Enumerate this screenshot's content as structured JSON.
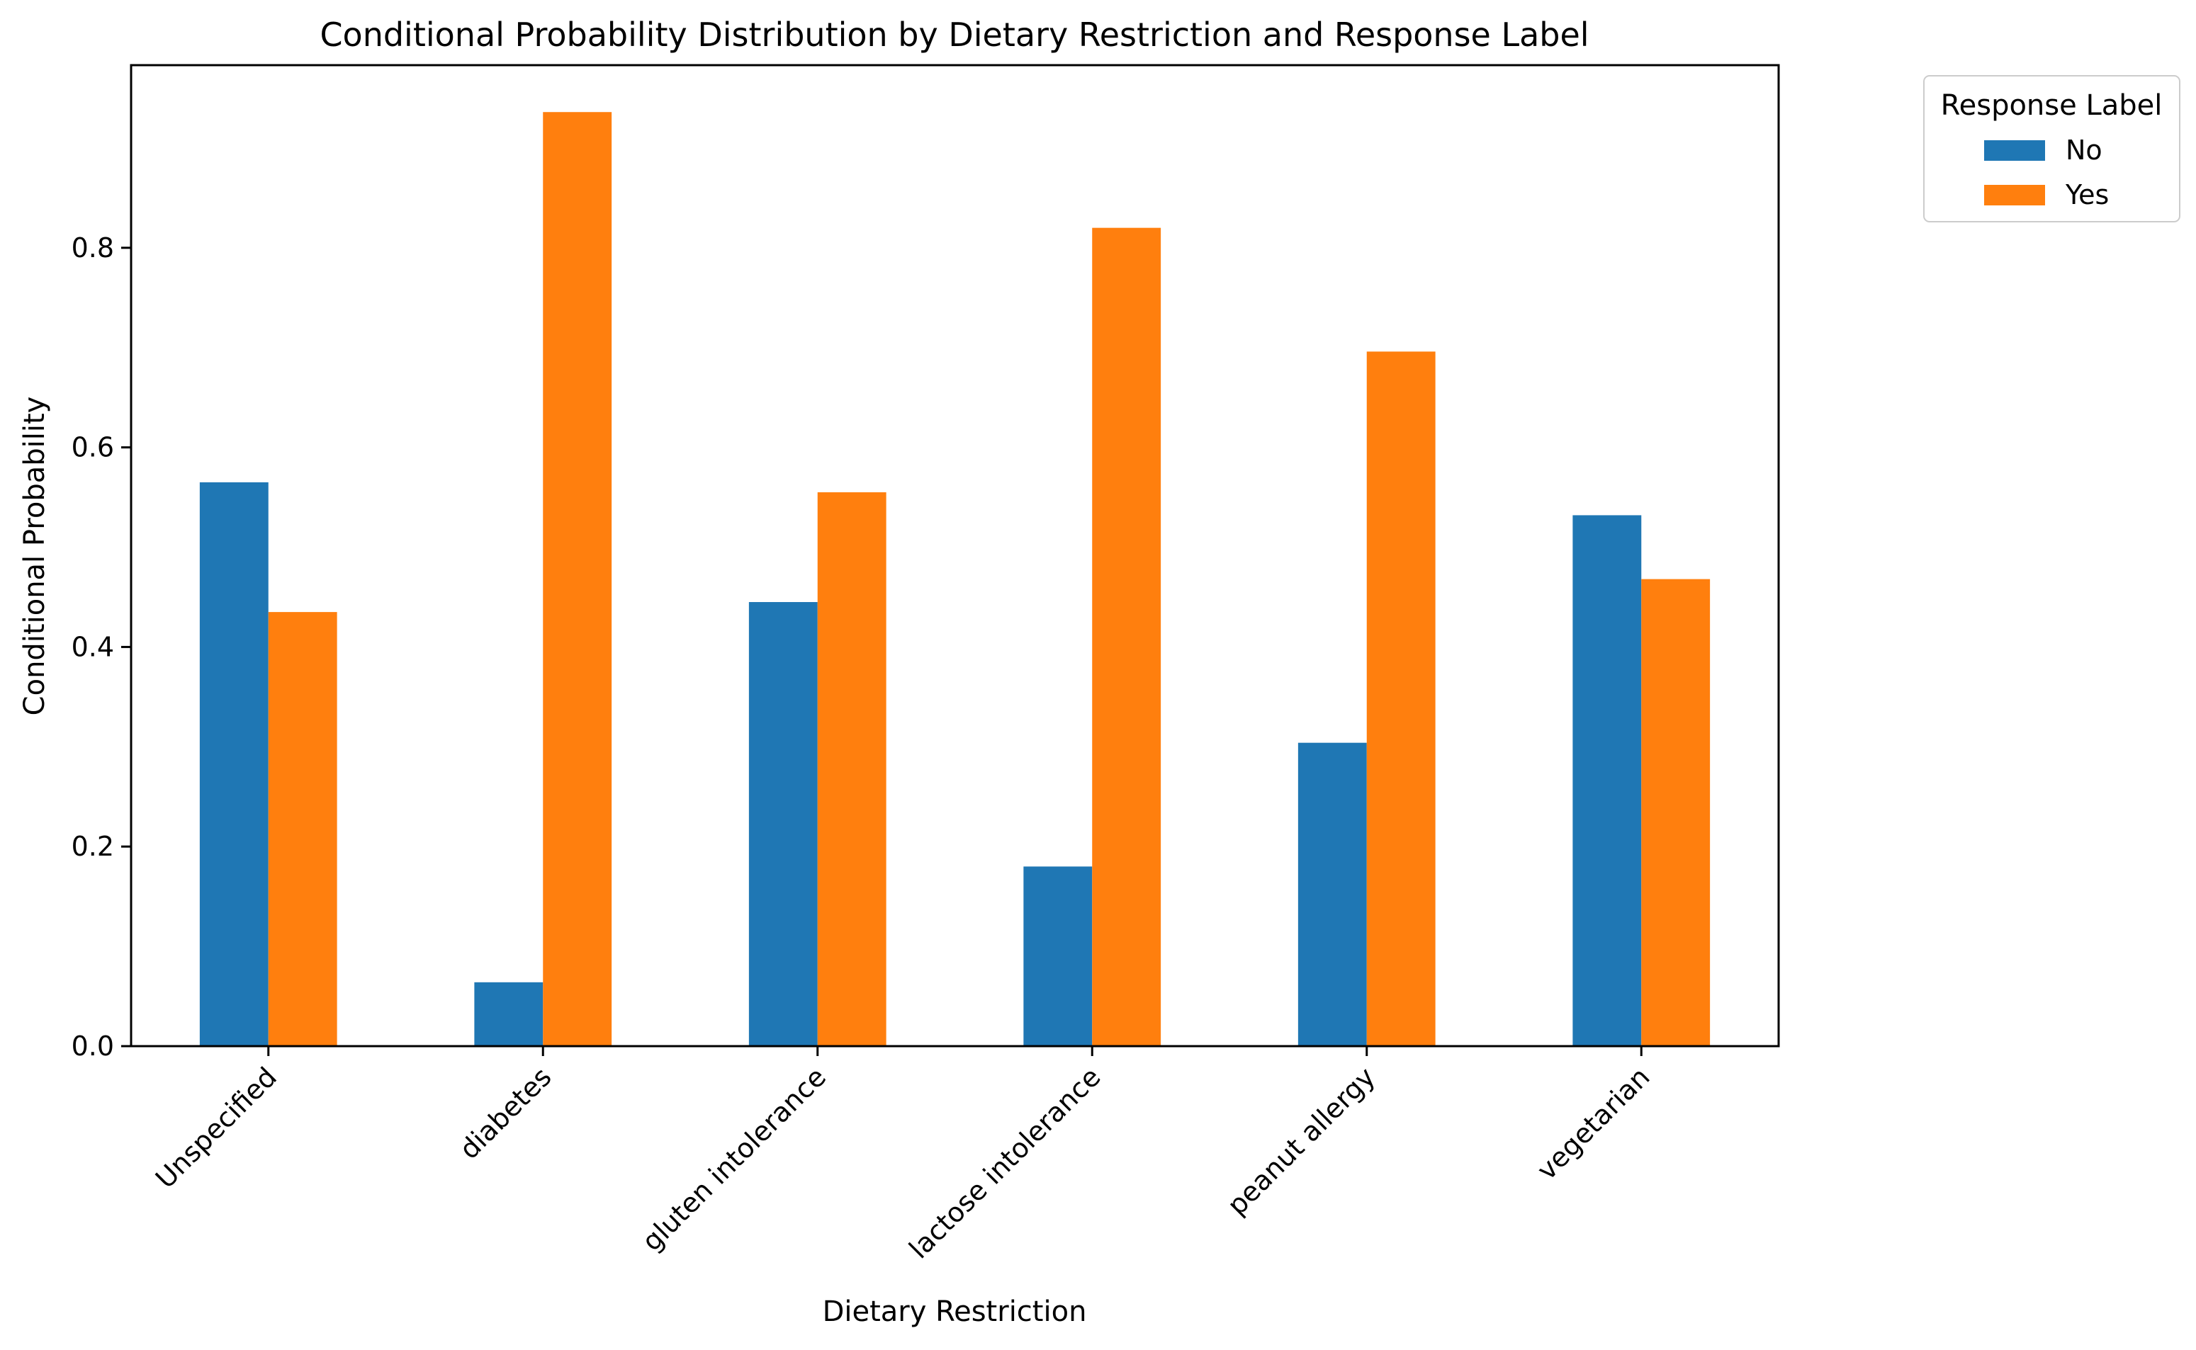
{
  "chart_data": {
    "type": "bar",
    "title": "Conditional Probability Distribution by Dietary Restriction and Response Label",
    "xlabel": "Dietary Restriction",
    "ylabel": "Conditional Probability",
    "categories": [
      "Unspecified",
      "diabetes",
      "gluten intolerance",
      "lactose intolerance",
      "peanut allergy",
      "vegetarian"
    ],
    "series": [
      {
        "name": "No",
        "color": "#1f77b4",
        "values": [
          0.565,
          0.064,
          0.445,
          0.18,
          0.304,
          0.532
        ]
      },
      {
        "name": "Yes",
        "color": "#ff7f0e",
        "values": [
          0.435,
          0.936,
          0.555,
          0.82,
          0.696,
          0.468
        ]
      }
    ],
    "ylim": [
      0,
      0.983
    ],
    "yticks": [
      0.0,
      0.2,
      0.4,
      0.6,
      0.8
    ],
    "ytick_labels": [
      "0.0",
      "0.2",
      "0.4",
      "0.6",
      "0.8"
    ],
    "grid": false,
    "legend": {
      "title": "Response Label",
      "placement": "outside-top-right"
    }
  }
}
